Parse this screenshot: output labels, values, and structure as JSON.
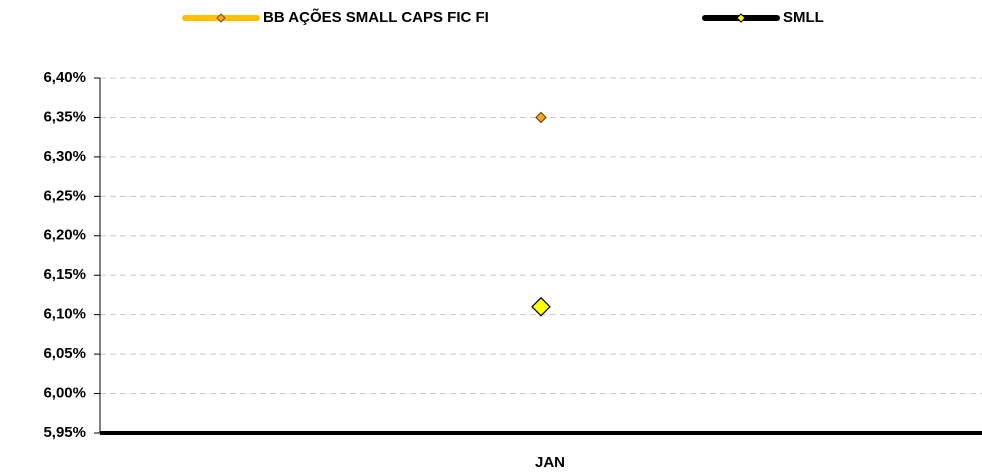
{
  "chart_data": {
    "type": "line",
    "categories": [
      "JAN"
    ],
    "series": [
      {
        "name": "BB AÇÕES SMALL CAPS FIC FI",
        "color": "#ffc000",
        "marker_color": "#f5a623",
        "values": [
          6.35
        ]
      },
      {
        "name": "SMLL",
        "color": "#000000",
        "marker_color": "#ffff00",
        "values": [
          6.11
        ]
      }
    ],
    "ylim": [
      5.95,
      6.4
    ],
    "yticks": [
      {
        "value": 5.95,
        "label": "5,95%"
      },
      {
        "value": 6.0,
        "label": "6,00%"
      },
      {
        "value": 6.05,
        "label": "6,05%"
      },
      {
        "value": 6.1,
        "label": "6,10%"
      },
      {
        "value": 6.15,
        "label": "6,15%"
      },
      {
        "value": 6.2,
        "label": "6,20%"
      },
      {
        "value": 6.25,
        "label": "6,25%"
      },
      {
        "value": 6.3,
        "label": "6,30%"
      },
      {
        "value": 6.35,
        "label": "6,35%"
      },
      {
        "value": 6.4,
        "label": "6,40%"
      }
    ],
    "grid": true,
    "legend": "top"
  }
}
